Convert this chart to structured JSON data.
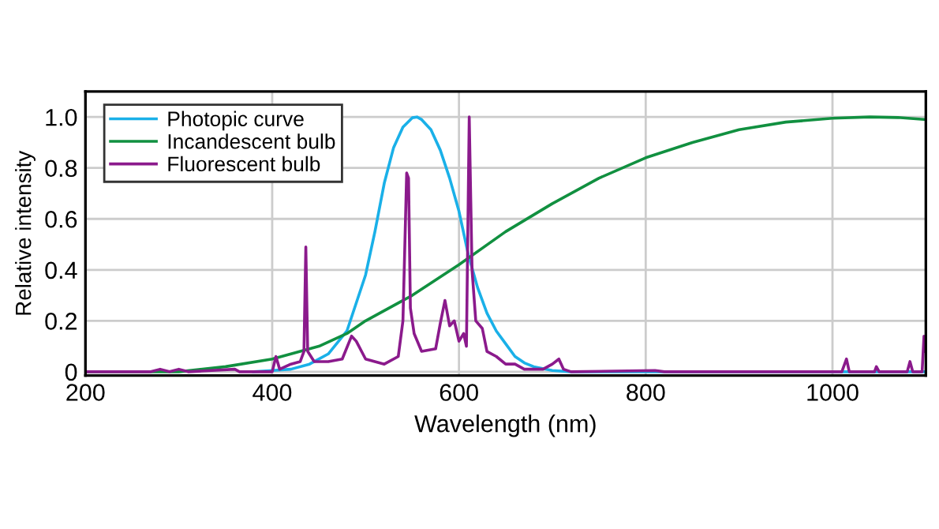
{
  "chart_data": {
    "type": "line",
    "xlabel": "Wavelength (nm)",
    "ylabel": "Relative intensity",
    "xlim": [
      200,
      1100
    ],
    "ylim": [
      -0.015,
      1.1
    ],
    "xticks": [
      200,
      400,
      600,
      800,
      1000
    ],
    "yticks": [
      {
        "value": 0,
        "label": "0"
      },
      0.2,
      0.4,
      0.6,
      0.8,
      {
        "value": 1,
        "label": "1.0"
      }
    ],
    "grid": true,
    "legend": "top left",
    "marker": "none",
    "line_style": "solid",
    "series": [
      {
        "name": "Photopic curve",
        "color": "#1ab0e8",
        "x": [
          380,
          400,
          420,
          440,
          460,
          480,
          500,
          510,
          520,
          530,
          540,
          550,
          555,
          560,
          570,
          580,
          590,
          600,
          610,
          620,
          630,
          640,
          650,
          660,
          670,
          680,
          700,
          720,
          1100
        ],
        "values": [
          0,
          0.005,
          0.01,
          0.03,
          0.07,
          0.16,
          0.38,
          0.55,
          0.74,
          0.88,
          0.96,
          0.997,
          1.0,
          0.99,
          0.95,
          0.87,
          0.76,
          0.63,
          0.46,
          0.33,
          0.23,
          0.16,
          0.11,
          0.06,
          0.035,
          0.02,
          0.005,
          0,
          0
        ]
      },
      {
        "name": "Incandescent bulb",
        "color": "#119040",
        "x": [
          200,
          300,
          350,
          400,
          450,
          480,
          500,
          550,
          600,
          650,
          700,
          750,
          800,
          850,
          900,
          950,
          1000,
          1040,
          1070,
          1100
        ],
        "values": [
          0,
          0,
          0.02,
          0.05,
          0.1,
          0.15,
          0.2,
          0.3,
          0.42,
          0.55,
          0.66,
          0.76,
          0.84,
          0.9,
          0.95,
          0.98,
          0.995,
          1.0,
          0.998,
          0.99
        ]
      },
      {
        "name": "Fluorescent bulb",
        "color": "#8b1a8c",
        "x": [
          200,
          270,
          280,
          290,
          300,
          310,
          360,
          365,
          400,
          404,
          408,
          420,
          430,
          434,
          436,
          438,
          445,
          460,
          475,
          485,
          490,
          500,
          520,
          535,
          540,
          544,
          546,
          548,
          552,
          560,
          575,
          580,
          585,
          590,
          595,
          600,
          605,
          608,
          611,
          614,
          618,
          625,
          630,
          640,
          650,
          660,
          670,
          690,
          700,
          707,
          712,
          720,
          810,
          820,
          1010,
          1015,
          1018,
          1045,
          1047,
          1050,
          1080,
          1083,
          1086,
          1096,
          1098,
          1100
        ],
        "values": [
          0,
          0,
          0.01,
          0,
          0.01,
          0,
          0.01,
          0,
          0,
          0.06,
          0.01,
          0.03,
          0.04,
          0.08,
          0.49,
          0.08,
          0.04,
          0.04,
          0.05,
          0.14,
          0.12,
          0.05,
          0.03,
          0.06,
          0.2,
          0.78,
          0.76,
          0.25,
          0.15,
          0.08,
          0.09,
          0.19,
          0.28,
          0.18,
          0.2,
          0.12,
          0.15,
          0.1,
          1.0,
          0.4,
          0.2,
          0.17,
          0.08,
          0.06,
          0.03,
          0.03,
          0.01,
          0.01,
          0.03,
          0.05,
          0.01,
          0,
          0.005,
          0,
          0,
          0.05,
          0,
          0,
          0.02,
          0,
          0,
          0.04,
          0,
          0,
          0.14,
          0.08
        ]
      }
    ]
  }
}
